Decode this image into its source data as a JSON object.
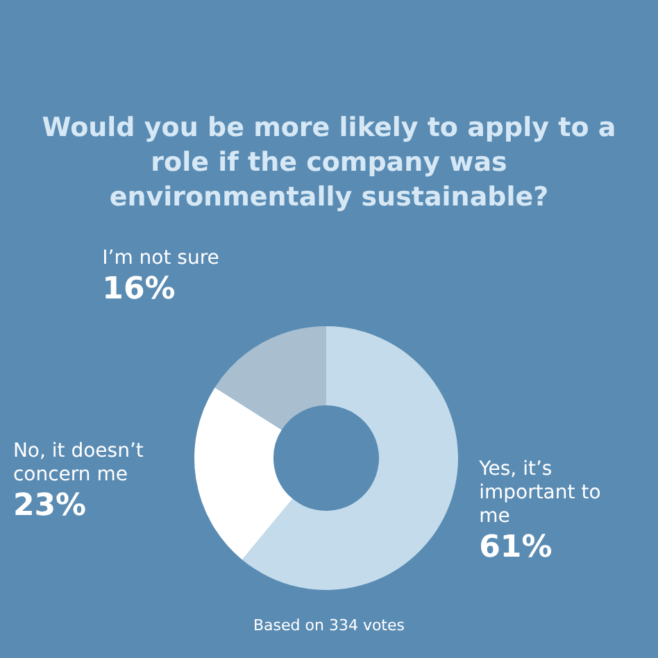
{
  "chart_data": {
    "type": "donut",
    "title": "Would you be more likely to apply to a role if the company was environmentally sustainable?",
    "categories": [
      "Yes, it’s important to me",
      "No, it doesn’t concern me",
      "I’m not sure"
    ],
    "values": [
      61,
      23,
      16
    ],
    "colors": [
      "#c3dbea",
      "#ffffff",
      "#a9bfcf"
    ],
    "value_labels": [
      "61%",
      "23%",
      "16%"
    ],
    "annotations": [
      "Based on 334 votes"
    ],
    "legend": false
  }
}
